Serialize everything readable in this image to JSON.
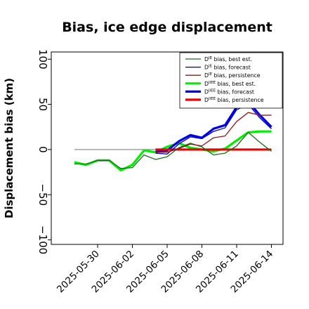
{
  "chart_data": {
    "type": "line",
    "title": "Bias, ice edge displacement",
    "xlabel": "",
    "ylabel": "Displacement bias (km)",
    "ylim": [
      -105,
      108
    ],
    "yticks": [
      -100,
      -50,
      0,
      50,
      100
    ],
    "ytick_labels": [
      "−100",
      "−50",
      "0",
      "50",
      "100"
    ],
    "xlim": [
      "2025-05-26",
      "2025-06-15"
    ],
    "xticks": [
      "2025-05-30",
      "2025-06-02",
      "2025-06-05",
      "2025-06-08",
      "2025-06-11",
      "2025-06-14"
    ],
    "xtick_colors": [
      "#000000",
      "#000000",
      "#2e8b2e",
      "#000000",
      "#000000",
      "#000000"
    ],
    "zero_line": {
      "y": 0,
      "x_start": "2025-05-28",
      "x_end": "2025-06-14",
      "color": "#808080"
    },
    "grid": false,
    "legend_position": "top-right",
    "series": [
      {
        "name_base": "D",
        "name_sup": "IE",
        "name_rest": " bias, best est.",
        "color": "#1a6b1a",
        "width": 1.3,
        "x": [
          "2025-05-28",
          "2025-05-29",
          "2025-05-30",
          "2025-05-31",
          "2025-06-01",
          "2025-06-02",
          "2025-06-03",
          "2025-06-04",
          "2025-06-05",
          "2025-06-06",
          "2025-06-07",
          "2025-06-08",
          "2025-06-09",
          "2025-06-10",
          "2025-06-11",
          "2025-06-12",
          "2025-06-13",
          "2025-06-14"
        ],
        "values": [
          -16,
          -16,
          -12,
          -12,
          -21,
          -20,
          -6,
          -11,
          -8,
          2,
          7,
          3,
          -6,
          -4,
          4,
          19,
          8,
          -2
        ]
      },
      {
        "name_base": "D",
        "name_sup": "IE",
        "name_rest": " bias, forecast",
        "color": "#0000aa",
        "width": 1.3,
        "x": [
          "2025-06-04",
          "2025-06-05",
          "2025-06-06",
          "2025-06-07",
          "2025-06-08",
          "2025-06-09",
          "2025-06-10",
          "2025-06-11",
          "2025-06-12",
          "2025-06-13",
          "2025-06-14"
        ],
        "values": [
          -4,
          -5,
          6,
          14,
          12,
          20,
          24,
          44,
          50,
          35,
          23
        ]
      },
      {
        "name_base": "D",
        "name_sup": "IE",
        "name_rest": " bias, persistence",
        "color": "#8b1a1a",
        "width": 1.3,
        "x": [
          "2025-06-04",
          "2025-06-05",
          "2025-06-06",
          "2025-06-07",
          "2025-06-08",
          "2025-06-09",
          "2025-06-10",
          "2025-06-11",
          "2025-06-12",
          "2025-06-13",
          "2025-06-14"
        ],
        "values": [
          -3,
          -3,
          1,
          6,
          4,
          13,
          15,
          31,
          41,
          38,
          38
        ]
      },
      {
        "name_base": "D",
        "name_sup": "IIEE",
        "name_rest": " bias, best est.",
        "color": "#00ee00",
        "width": 3.2,
        "x": [
          "2025-05-28",
          "2025-05-29",
          "2025-05-30",
          "2025-05-31",
          "2025-06-01",
          "2025-06-02",
          "2025-06-03",
          "2025-06-04",
          "2025-06-05",
          "2025-06-06",
          "2025-06-07",
          "2025-06-08",
          "2025-06-09",
          "2025-06-10",
          "2025-06-11",
          "2025-06-12",
          "2025-06-13",
          "2025-06-14"
        ],
        "values": [
          -14,
          -17,
          -12,
          -12,
          -23,
          -17,
          -1,
          -3,
          3,
          7,
          2,
          0,
          -2,
          1,
          10,
          19,
          20,
          20
        ]
      },
      {
        "name_base": "D",
        "name_sup": "IIEE",
        "name_rest": " bias, forecast",
        "color": "#0000ee",
        "width": 3.2,
        "x": [
          "2025-06-04",
          "2025-06-05",
          "2025-06-06",
          "2025-06-07",
          "2025-06-08",
          "2025-06-09",
          "2025-06-10",
          "2025-06-11",
          "2025-06-12",
          "2025-06-13",
          "2025-06-14"
        ],
        "values": [
          -2,
          -1,
          9,
          16,
          13,
          23,
          27,
          47,
          53,
          38,
          25
        ]
      },
      {
        "name_base": "D",
        "name_sup": "IIEE",
        "name_rest": " bias, persistence",
        "color": "#ee0000",
        "width": 3.2,
        "x": [
          "2025-06-04",
          "2025-06-14"
        ],
        "values": [
          0,
          0
        ]
      }
    ]
  }
}
